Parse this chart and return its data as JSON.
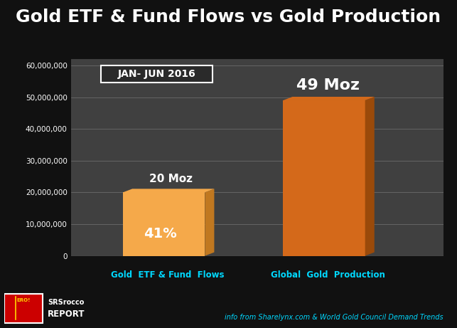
{
  "title": "Gold ETF & Fund Flows vs Gold Production",
  "categories": [
    "Gold  ETF & Fund  Flows",
    "Global  Gold  Production"
  ],
  "values": [
    20000000,
    49000000
  ],
  "bar_colors_front": [
    "#F5A94A",
    "#D4691A"
  ],
  "bar_colors_side": [
    "#C07820",
    "#9A4A0A"
  ],
  "ylim": [
    0,
    62000000
  ],
  "yticks": [
    0,
    10000000,
    20000000,
    30000000,
    40000000,
    50000000,
    60000000
  ],
  "background_color": "#111111",
  "plot_bg_color": "#404040",
  "title_color": "#ffffff",
  "title_fontsize": 18,
  "axis_label_color": "#00D8FF",
  "tick_color": "#ffffff",
  "grid_color": "#888888",
  "annotation_box_text": "JAN- JUN 2016",
  "bar1_label": "20 Moz",
  "bar1_sublabel": "41%",
  "bar2_label": "49 Moz",
  "footer_text": "info from Sharelynx.com & World Gold Council Demand Trends",
  "footer_color": "#00D8FF",
  "logo_bg": "#CC0000",
  "logo_text1": "SRSrocco",
  "logo_text2": "REPORT"
}
